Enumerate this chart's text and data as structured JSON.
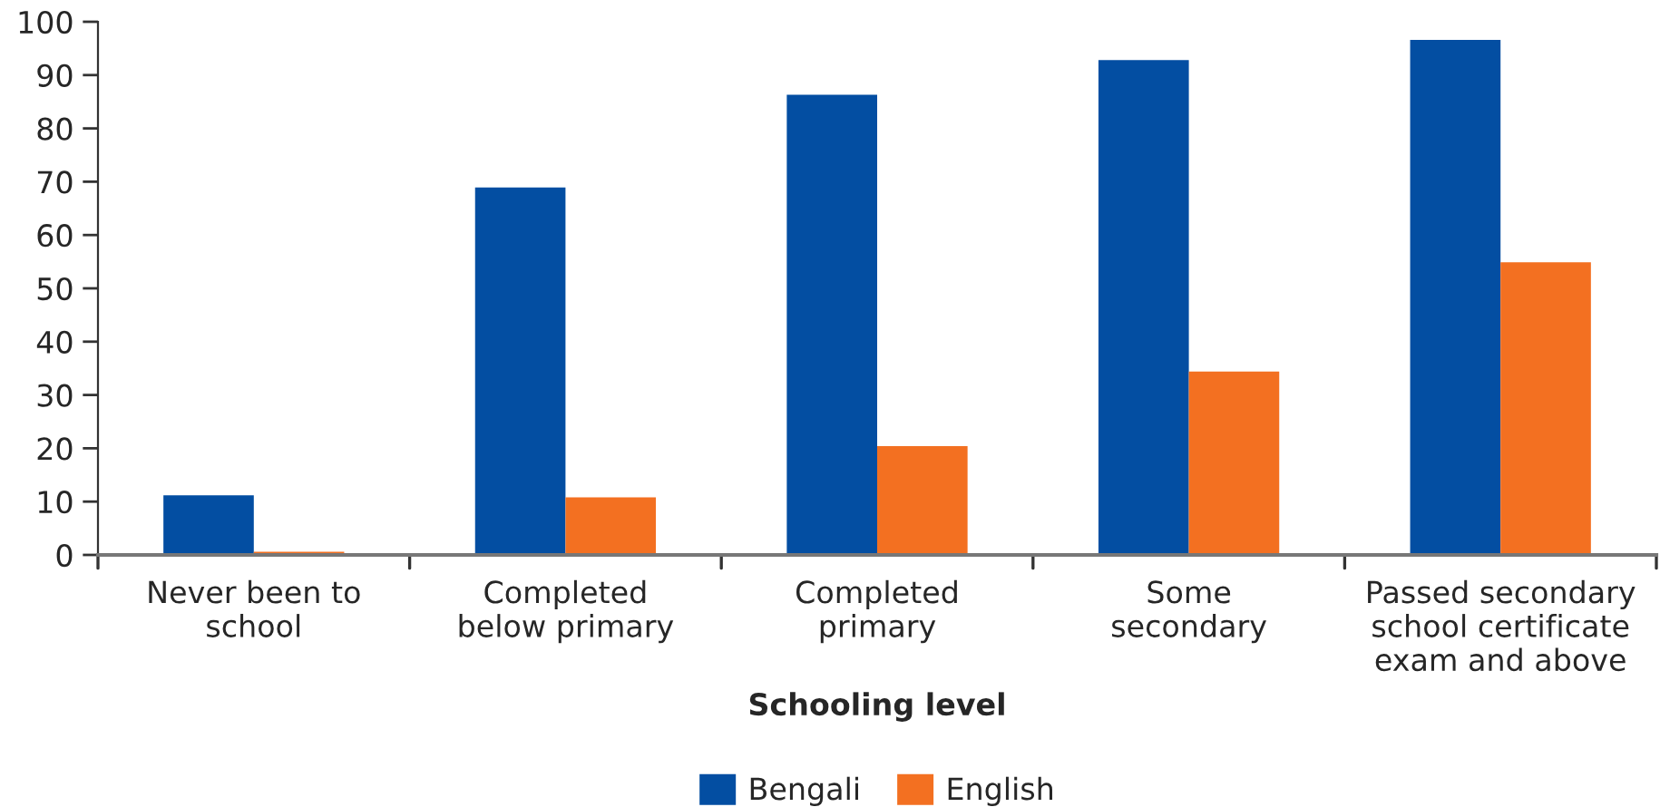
{
  "chart_data": {
    "type": "bar",
    "xlabel": "Schooling level",
    "categories": [
      "Never been to\nschool",
      "Completed\nbelow primary",
      "Completed\nprimary",
      "Some\nsecondary",
      "Passed secondary\nschool certificate\nexam and above"
    ],
    "series": [
      {
        "name": "Bengali",
        "color": "#034ea2",
        "values": [
          11.2,
          68.9,
          86.3,
          92.8,
          96.6
        ]
      },
      {
        "name": "English",
        "color": "#f37021",
        "values": [
          0.6,
          10.8,
          20.4,
          34.4,
          54.9
        ]
      }
    ],
    "ylim": [
      0,
      100
    ],
    "yticks": [
      0,
      10,
      20,
      30,
      40,
      50,
      60,
      70,
      80,
      90,
      100
    ],
    "grid": false,
    "legend": "bottom"
  }
}
